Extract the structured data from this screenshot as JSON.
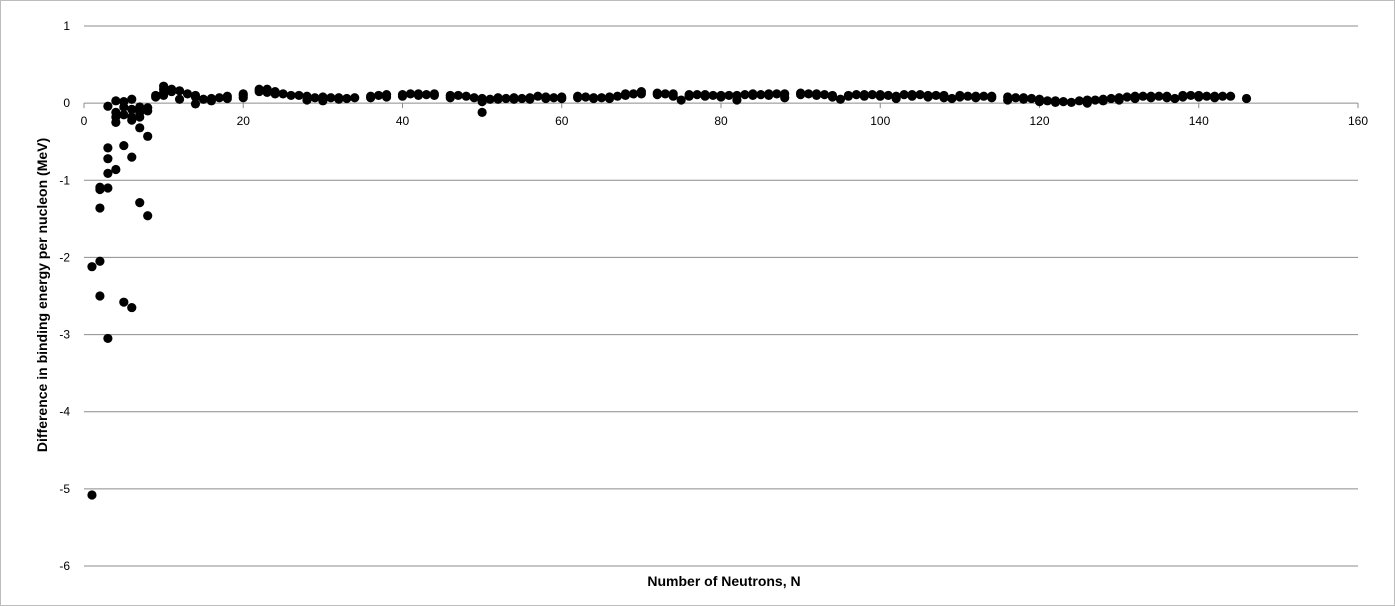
{
  "chart_data": {
    "type": "scatter",
    "title": "",
    "xlabel": "Number of Neutrons, N",
    "ylabel": "Difference in binding energy per nucleon (MeV)",
    "xlim": [
      0,
      160
    ],
    "ylim": [
      -6,
      1
    ],
    "xticks": [
      0,
      20,
      40,
      60,
      80,
      100,
      120,
      140,
      160
    ],
    "yticks": [
      1,
      0,
      -1,
      -2,
      -3,
      -4,
      -5,
      -6
    ],
    "xtick_labels": [
      "0",
      "20",
      "40",
      "60",
      "80",
      "100",
      "120",
      "140",
      "160"
    ],
    "ytick_labels": [
      "1",
      "0",
      "-1",
      "-2",
      "-3",
      "-4",
      "-5",
      "-6"
    ],
    "grid": "horizontal",
    "legend": "none",
    "marker_color": "#000000",
    "gridline_color": "#8c8c8c",
    "series": [
      {
        "points": [
          [
            1,
            -2.12
          ],
          [
            1,
            -5.08
          ],
          [
            2,
            -1.09
          ],
          [
            2,
            -1.12
          ],
          [
            2,
            -1.36
          ],
          [
            2,
            -2.05
          ],
          [
            2,
            -2.5
          ],
          [
            3,
            -0.04
          ],
          [
            3,
            -0.58
          ],
          [
            3,
            -0.72
          ],
          [
            3,
            -0.91
          ],
          [
            3,
            -1.1
          ],
          [
            3,
            -3.05
          ],
          [
            4,
            0.03
          ],
          [
            4,
            -0.12
          ],
          [
            4,
            -0.18
          ],
          [
            4,
            -0.25
          ],
          [
            4,
            -0.86
          ],
          [
            5,
            0.02
          ],
          [
            5,
            -0.05
          ],
          [
            5,
            -0.15
          ],
          [
            5,
            -0.55
          ],
          [
            5,
            -2.58
          ],
          [
            6,
            0.05
          ],
          [
            6,
            -0.08
          ],
          [
            6,
            -0.18
          ],
          [
            6,
            -0.22
          ],
          [
            6,
            -0.7
          ],
          [
            6,
            -2.65
          ],
          [
            7,
            -0.05
          ],
          [
            7,
            -0.12
          ],
          [
            7,
            -0.18
          ],
          [
            7,
            -0.32
          ],
          [
            7,
            -1.29
          ],
          [
            8,
            -0.06
          ],
          [
            8,
            -0.1
          ],
          [
            8,
            -0.43
          ],
          [
            8,
            -1.46
          ],
          [
            9,
            0.08
          ],
          [
            9,
            0.1
          ],
          [
            10,
            0.14
          ],
          [
            10,
            0.22
          ],
          [
            10,
            0.18
          ],
          [
            10,
            0.1
          ],
          [
            11,
            0.18
          ],
          [
            11,
            0.15
          ],
          [
            12,
            0.16
          ],
          [
            12,
            0.05
          ],
          [
            13,
            0.12
          ],
          [
            14,
            0.1
          ],
          [
            14,
            -0.01
          ],
          [
            14,
            0.08
          ],
          [
            15,
            0.05
          ],
          [
            16,
            0.06
          ],
          [
            16,
            0.03
          ],
          [
            17,
            0.07
          ],
          [
            18,
            0.09
          ],
          [
            18,
            0.06
          ],
          [
            20,
            0.1
          ],
          [
            20,
            0.12
          ],
          [
            20,
            0.07
          ],
          [
            22,
            0.15
          ],
          [
            22,
            0.18
          ],
          [
            23,
            0.18
          ],
          [
            23,
            0.14
          ],
          [
            24,
            0.15
          ],
          [
            24,
            0.12
          ],
          [
            25,
            0.12
          ],
          [
            26,
            0.1
          ],
          [
            27,
            0.1
          ],
          [
            28,
            0.09
          ],
          [
            28,
            0.04
          ],
          [
            29,
            0.07
          ],
          [
            30,
            0.08
          ],
          [
            30,
            0.03
          ],
          [
            31,
            0.07
          ],
          [
            32,
            0.07
          ],
          [
            32,
            0.05
          ],
          [
            33,
            0.06
          ],
          [
            34,
            0.07
          ],
          [
            36,
            0.09
          ],
          [
            36,
            0.07
          ],
          [
            37,
            0.1
          ],
          [
            38,
            0.11
          ],
          [
            38,
            0.08
          ],
          [
            40,
            0.11
          ],
          [
            40,
            0.09
          ],
          [
            41,
            0.12
          ],
          [
            42,
            0.12
          ],
          [
            42,
            0.1
          ],
          [
            43,
            0.11
          ],
          [
            44,
            0.12
          ],
          [
            44,
            0.1
          ],
          [
            46,
            0.1
          ],
          [
            46,
            0.07
          ],
          [
            47,
            0.1
          ],
          [
            48,
            0.09
          ],
          [
            49,
            0.07
          ],
          [
            50,
            0.06
          ],
          [
            50,
            0.02
          ],
          [
            50,
            -0.12
          ],
          [
            51,
            0.05
          ],
          [
            52,
            0.07
          ],
          [
            52,
            0.05
          ],
          [
            53,
            0.06
          ],
          [
            54,
            0.07
          ],
          [
            54,
            0.05
          ],
          [
            55,
            0.06
          ],
          [
            56,
            0.07
          ],
          [
            56,
            0.05
          ],
          [
            57,
            0.09
          ],
          [
            58,
            0.08
          ],
          [
            58,
            0.06
          ],
          [
            59,
            0.07
          ],
          [
            60,
            0.08
          ],
          [
            60,
            0.06
          ],
          [
            62,
            0.09
          ],
          [
            62,
            0.07
          ],
          [
            63,
            0.08
          ],
          [
            64,
            0.07
          ],
          [
            64,
            0.06
          ],
          [
            65,
            0.07
          ],
          [
            66,
            0.08
          ],
          [
            66,
            0.06
          ],
          [
            67,
            0.09
          ],
          [
            68,
            0.12
          ],
          [
            68,
            0.1
          ],
          [
            69,
            0.12
          ],
          [
            70,
            0.15
          ],
          [
            70,
            0.12
          ],
          [
            72,
            0.13
          ],
          [
            72,
            0.11
          ],
          [
            73,
            0.12
          ],
          [
            74,
            0.12
          ],
          [
            74,
            0.09
          ],
          [
            75,
            0.04
          ],
          [
            76,
            0.11
          ],
          [
            76,
            0.09
          ],
          [
            77,
            0.11
          ],
          [
            78,
            0.11
          ],
          [
            78,
            0.09
          ],
          [
            79,
            0.1
          ],
          [
            80,
            0.1
          ],
          [
            80,
            0.08
          ],
          [
            81,
            0.1
          ],
          [
            82,
            0.1
          ],
          [
            82,
            0.04
          ],
          [
            83,
            0.11
          ],
          [
            84,
            0.12
          ],
          [
            84,
            0.1
          ],
          [
            85,
            0.11
          ],
          [
            86,
            0.12
          ],
          [
            86,
            0.1
          ],
          [
            87,
            0.12
          ],
          [
            88,
            0.12
          ],
          [
            88,
            0.07
          ],
          [
            90,
            0.13
          ],
          [
            90,
            0.11
          ],
          [
            91,
            0.12
          ],
          [
            92,
            0.12
          ],
          [
            92,
            0.1
          ],
          [
            93,
            0.11
          ],
          [
            94,
            0.1
          ],
          [
            94,
            0.08
          ],
          [
            95,
            0.05
          ],
          [
            96,
            0.1
          ],
          [
            96,
            0.09
          ],
          [
            97,
            0.11
          ],
          [
            98,
            0.11
          ],
          [
            98,
            0.09
          ],
          [
            99,
            0.11
          ],
          [
            100,
            0.11
          ],
          [
            100,
            0.09
          ],
          [
            101,
            0.1
          ],
          [
            102,
            0.09
          ],
          [
            102,
            0.06
          ],
          [
            103,
            0.11
          ],
          [
            104,
            0.11
          ],
          [
            104,
            0.09
          ],
          [
            105,
            0.11
          ],
          [
            106,
            0.1
          ],
          [
            106,
            0.08
          ],
          [
            107,
            0.1
          ],
          [
            108,
            0.1
          ],
          [
            108,
            0.07
          ],
          [
            109,
            0.06
          ],
          [
            110,
            0.1
          ],
          [
            110,
            0.08
          ],
          [
            111,
            0.09
          ],
          [
            112,
            0.09
          ],
          [
            112,
            0.07
          ],
          [
            113,
            0.09
          ],
          [
            114,
            0.09
          ],
          [
            114,
            0.07
          ],
          [
            116,
            0.08
          ],
          [
            116,
            0.04
          ],
          [
            117,
            0.07
          ],
          [
            118,
            0.07
          ],
          [
            118,
            0.05
          ],
          [
            119,
            0.06
          ],
          [
            120,
            0.05
          ],
          [
            120,
            0.02
          ],
          [
            121,
            0.03
          ],
          [
            122,
            0.03
          ],
          [
            122,
            0.01
          ],
          [
            123,
            0.02
          ],
          [
            124,
            0.01
          ],
          [
            125,
            0.03
          ],
          [
            126,
            0.04
          ],
          [
            126,
            0.0
          ],
          [
            127,
            0.04
          ],
          [
            128,
            0.05
          ],
          [
            128,
            0.03
          ],
          [
            129,
            0.06
          ],
          [
            130,
            0.07
          ],
          [
            130,
            0.04
          ],
          [
            131,
            0.08
          ],
          [
            132,
            0.09
          ],
          [
            132,
            0.06
          ],
          [
            133,
            0.09
          ],
          [
            134,
            0.09
          ],
          [
            134,
            0.07
          ],
          [
            135,
            0.09
          ],
          [
            136,
            0.09
          ],
          [
            136,
            0.07
          ],
          [
            137,
            0.06
          ],
          [
            138,
            0.1
          ],
          [
            138,
            0.08
          ],
          [
            139,
            0.1
          ],
          [
            140,
            0.1
          ],
          [
            140,
            0.08
          ],
          [
            141,
            0.09
          ],
          [
            142,
            0.09
          ],
          [
            142,
            0.07
          ],
          [
            143,
            0.09
          ],
          [
            144,
            0.09
          ],
          [
            146,
            0.06
          ]
        ]
      }
    ]
  }
}
